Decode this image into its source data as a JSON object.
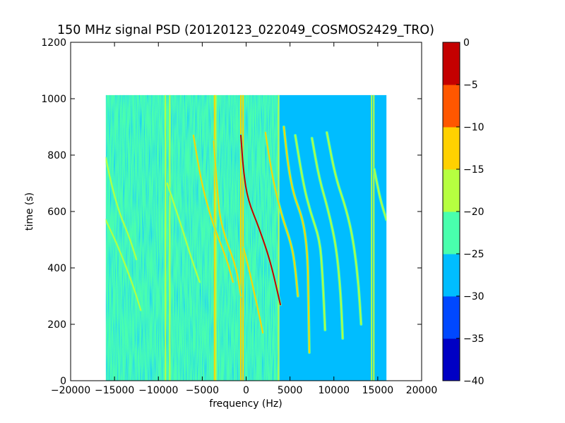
{
  "chart_data": {
    "type": "heatmap",
    "title": "150 MHz signal PSD (20120123_022049_COSMOS2429_TRO)",
    "xlabel": "frequency (Hz)",
    "ylabel": "time (s)",
    "xlim": [
      -20000,
      20000
    ],
    "ylim": [
      0,
      1200
    ],
    "xticks": [
      -20000,
      -15000,
      -10000,
      -5000,
      0,
      5000,
      10000,
      15000,
      20000
    ],
    "xtick_labels": [
      "−20000",
      "−15000",
      "−10000",
      "−5000",
      "0",
      "5000",
      "10000",
      "15000",
      "20000"
    ],
    "yticks": [
      0,
      200,
      400,
      600,
      800,
      1000,
      1200
    ],
    "ytick_labels": [
      "0",
      "200",
      "400",
      "600",
      "800",
      "1000",
      "1200"
    ],
    "data_extent": {
      "x": [
        -16000,
        16000
      ],
      "y": [
        0,
        1013
      ]
    },
    "background_level_split_x": 3800,
    "background_levels": {
      "left": -22.5,
      "right": -27.5
    },
    "vertical_lines": [
      {
        "x": -9200,
        "level": -20
      },
      {
        "x": -8700,
        "level": -20
      },
      {
        "x": -3600,
        "level": -15
      },
      {
        "x": -3450,
        "level": -20
      },
      {
        "x": -600,
        "level": -15
      },
      {
        "x": -350,
        "level": -12
      },
      {
        "x": 3700,
        "level": -20
      },
      {
        "x": 14300,
        "level": -20
      },
      {
        "x": 14550,
        "level": -20
      }
    ],
    "tracks": [
      {
        "points": [
          [
            -16000,
            570
          ],
          [
            -14500,
            470
          ],
          [
            -12800,
            330
          ],
          [
            -12000,
            250
          ]
        ],
        "level": -18
      },
      {
        "points": [
          [
            -16000,
            790
          ],
          [
            -15300,
            690
          ],
          [
            -14500,
            600
          ],
          [
            -13200,
            500
          ],
          [
            -12500,
            430
          ]
        ],
        "level": -20
      },
      {
        "points": [
          [
            -9000,
            700
          ],
          [
            -7500,
            560
          ],
          [
            -6200,
            430
          ],
          [
            -5300,
            350
          ]
        ],
        "level": -18
      },
      {
        "points": [
          [
            -6000,
            870
          ],
          [
            -5200,
            720
          ],
          [
            -4400,
            620
          ],
          [
            -3600,
            540
          ],
          [
            -2200,
            430
          ],
          [
            -1500,
            350
          ]
        ],
        "level": -12
      },
      {
        "points": [
          [
            -3700,
            850
          ],
          [
            -3300,
            680
          ],
          [
            -3000,
            580
          ],
          [
            -2300,
            500
          ],
          [
            -1100,
            400
          ],
          [
            -600,
            300
          ]
        ],
        "level": -15
      },
      {
        "points": [
          [
            -600,
            870
          ],
          [
            -300,
            740
          ],
          [
            200,
            640
          ],
          [
            1500,
            540
          ],
          [
            2800,
            420
          ],
          [
            3900,
            270
          ]
        ],
        "level": -5
      },
      {
        "points": [
          [
            -300,
            470
          ],
          [
            300,
            400
          ],
          [
            1300,
            260
          ],
          [
            1900,
            170
          ]
        ],
        "level": -15
      },
      {
        "points": [
          [
            2200,
            880
          ],
          [
            3000,
            720
          ],
          [
            4000,
            590
          ],
          [
            5200,
            480
          ],
          [
            5600,
            400
          ],
          [
            5900,
            300
          ]
        ],
        "level": -12
      },
      {
        "points": [
          [
            4300,
            900
          ],
          [
            4800,
            760
          ],
          [
            5400,
            660
          ],
          [
            6500,
            570
          ],
          [
            7000,
            450
          ],
          [
            7100,
            300
          ],
          [
            7200,
            100
          ]
        ],
        "level": -15
      },
      {
        "points": [
          [
            5600,
            870
          ],
          [
            6500,
            700
          ],
          [
            7300,
            600
          ],
          [
            8400,
            500
          ],
          [
            8700,
            380
          ],
          [
            9000,
            180
          ]
        ],
        "level": -18
      },
      {
        "points": [
          [
            7500,
            860
          ],
          [
            8300,
            720
          ],
          [
            9400,
            600
          ],
          [
            10300,
            470
          ],
          [
            10800,
            300
          ],
          [
            11000,
            150
          ]
        ],
        "level": -18
      },
      {
        "points": [
          [
            9200,
            880
          ],
          [
            10200,
            720
          ],
          [
            11400,
            610
          ],
          [
            12200,
            500
          ],
          [
            12800,
            350
          ],
          [
            13100,
            200
          ]
        ],
        "level": -20
      },
      {
        "points": [
          [
            14600,
            750
          ],
          [
            15300,
            640
          ],
          [
            16000,
            570
          ]
        ],
        "level": -18
      }
    ],
    "colorbar": {
      "ticks": [
        0,
        -5,
        -10,
        -15,
        -20,
        -25,
        -30,
        -35,
        -40
      ],
      "tick_labels": [
        "0",
        "−5",
        "−10",
        "−15",
        "−20",
        "−25",
        "−30",
        "−35",
        "−40"
      ],
      "range": [
        -40,
        0
      ],
      "colors": [
        "#0000c4",
        "#0048ff",
        "#00bdff",
        "#49ffad",
        "#b6ff40",
        "#ffd100",
        "#ff5700",
        "#c40000"
      ]
    }
  }
}
